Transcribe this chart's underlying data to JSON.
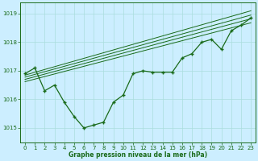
{
  "title": "",
  "xlabel": "Graphe pression niveau de la mer (hPa)",
  "ylabel": "",
  "bg_color": "#cceeff",
  "line_color": "#1a6b1a",
  "text_color": "#1a6b1a",
  "xlim": [
    -0.5,
    23.5
  ],
  "ylim": [
    1014.5,
    1019.4
  ],
  "yticks": [
    1015,
    1016,
    1017,
    1018,
    1019
  ],
  "xticks": [
    0,
    1,
    2,
    3,
    4,
    5,
    6,
    7,
    8,
    9,
    10,
    11,
    12,
    13,
    14,
    15,
    16,
    17,
    18,
    19,
    20,
    21,
    22,
    23
  ],
  "main_x": [
    0,
    1,
    2,
    3,
    4,
    5,
    6,
    7,
    8,
    9,
    10,
    11,
    12,
    13,
    14,
    15,
    16,
    17,
    18,
    19,
    20,
    21,
    22,
    23
  ],
  "main_y": [
    1016.9,
    1017.1,
    1016.3,
    1016.5,
    1015.9,
    1015.4,
    1015.0,
    1015.1,
    1015.2,
    1015.9,
    1016.15,
    1016.9,
    1017.0,
    1016.95,
    1016.95,
    1016.95,
    1017.45,
    1017.6,
    1018.0,
    1018.1,
    1017.75,
    1018.4,
    1018.6,
    1018.85
  ],
  "trend_lines": [
    {
      "x": [
        0,
        23
      ],
      "y": [
        1016.85,
        1019.1
      ]
    },
    {
      "x": [
        0,
        23
      ],
      "y": [
        1016.78,
        1018.95
      ]
    },
    {
      "x": [
        0,
        23
      ],
      "y": [
        1016.7,
        1018.82
      ]
    },
    {
      "x": [
        0,
        23
      ],
      "y": [
        1016.62,
        1018.68
      ]
    }
  ]
}
